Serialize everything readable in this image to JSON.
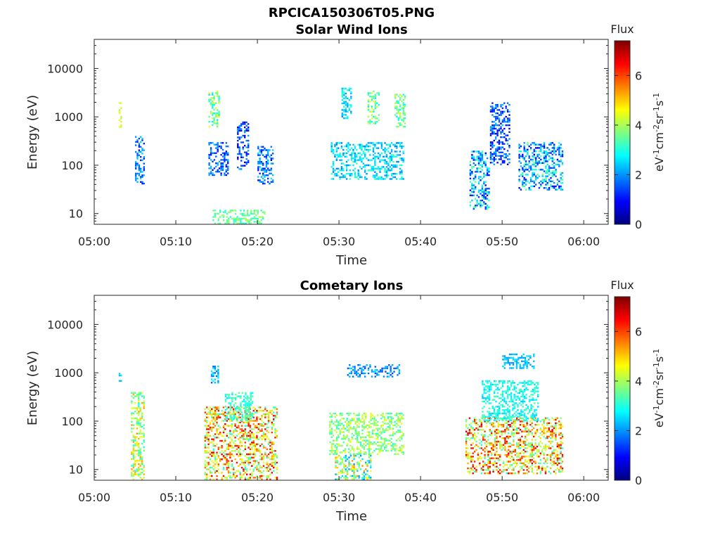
{
  "figure": {
    "title": "RPCICA150306T05.PNG"
  },
  "chart_data": [
    {
      "type": "heatmap",
      "title": "Solar Wind Ions",
      "xlabel": "Time",
      "ylabel": "Energy (eV)",
      "x_tick_labels": [
        "05:00",
        "05:10",
        "05:20",
        "05:30",
        "05:40",
        "05:50",
        "06:00"
      ],
      "x_ticks_min": [
        0,
        10,
        20,
        30,
        40,
        50,
        60
      ],
      "xlim_min": [
        0,
        63
      ],
      "y_scale": "log",
      "y_tick_labels": [
        "10",
        "100",
        "1000",
        "10000"
      ],
      "y_ticks": [
        10,
        100,
        1000,
        10000
      ],
      "ylim": [
        6,
        40000
      ],
      "colorbar": {
        "title": "Flux",
        "label": "eV-1cm-2sr-1s-1",
        "ticks": [
          0,
          2,
          4,
          6
        ],
        "range": [
          0,
          7.4
        ],
        "colormap": "jet"
      },
      "clusters": [
        {
          "t": [
            3.0,
            3.4
          ],
          "e": [
            550,
            2000
          ],
          "v": [
            3.8,
            4.8
          ]
        },
        {
          "t": [
            5.0,
            6.2
          ],
          "e": [
            40,
            400
          ],
          "v": [
            1.0,
            2.6
          ]
        },
        {
          "t": [
            14.0,
            15.4
          ],
          "e": [
            600,
            3500
          ],
          "v": [
            2.6,
            4.6
          ]
        },
        {
          "t": [
            14.0,
            16.5
          ],
          "e": [
            60,
            300
          ],
          "v": [
            0.8,
            2.4
          ]
        },
        {
          "t": [
            17.5,
            19.0
          ],
          "e": [
            80,
            800
          ],
          "v": [
            0.6,
            2.2
          ]
        },
        {
          "t": [
            20.0,
            22.0
          ],
          "e": [
            40,
            250
          ],
          "v": [
            1.0,
            2.6
          ]
        },
        {
          "t": [
            30.3,
            31.6
          ],
          "e": [
            900,
            4000
          ],
          "v": [
            2.0,
            3.2
          ]
        },
        {
          "t": [
            33.5,
            35.0
          ],
          "e": [
            700,
            3500
          ],
          "v": [
            2.6,
            4.6
          ]
        },
        {
          "t": [
            36.8,
            38.2
          ],
          "e": [
            600,
            3000
          ],
          "v": [
            2.6,
            4.4
          ]
        },
        {
          "t": [
            29.0,
            38.0
          ],
          "e": [
            50,
            300
          ],
          "v": [
            1.8,
            3.2
          ]
        },
        {
          "t": [
            46.0,
            48.5
          ],
          "e": [
            12,
            200
          ],
          "v": [
            0.8,
            3.6
          ]
        },
        {
          "t": [
            48.5,
            51.0
          ],
          "e": [
            100,
            2000
          ],
          "v": [
            0.6,
            2.4
          ]
        },
        {
          "t": [
            52.0,
            57.5
          ],
          "e": [
            30,
            300
          ],
          "v": [
            0.8,
            3.6
          ]
        },
        {
          "t": [
            14.5,
            21.0
          ],
          "e": [
            6,
            12
          ],
          "v": [
            3.0,
            4.0
          ]
        }
      ]
    },
    {
      "type": "heatmap",
      "title": "Cometary Ions",
      "xlabel": "Time",
      "ylabel": "Energy (eV)",
      "x_tick_labels": [
        "05:00",
        "05:10",
        "05:20",
        "05:30",
        "05:40",
        "05:50",
        "06:00"
      ],
      "x_ticks_min": [
        0,
        10,
        20,
        30,
        40,
        50,
        60
      ],
      "xlim_min": [
        0,
        63
      ],
      "y_scale": "log",
      "y_tick_labels": [
        "10",
        "100",
        "1000",
        "10000"
      ],
      "y_ticks": [
        10,
        100,
        1000,
        10000
      ],
      "ylim": [
        6,
        40000
      ],
      "colorbar": {
        "title": "Flux",
        "label": "eV-1cm-2sr-1s-1",
        "ticks": [
          0,
          2,
          4,
          6
        ],
        "range": [
          0,
          7.4
        ],
        "colormap": "jet"
      },
      "clusters": [
        {
          "t": [
            3.0,
            3.4
          ],
          "e": [
            600,
            1000
          ],
          "v": [
            2.0,
            2.6
          ]
        },
        {
          "t": [
            4.5,
            6.2
          ],
          "e": [
            6,
            400
          ],
          "v": [
            2.8,
            5.4
          ]
        },
        {
          "t": [
            13.5,
            22.5
          ],
          "e": [
            6,
            200
          ],
          "v": [
            3.0,
            6.8
          ]
        },
        {
          "t": [
            14.3,
            15.3
          ],
          "e": [
            600,
            1400
          ],
          "v": [
            1.6,
            2.8
          ]
        },
        {
          "t": [
            16.0,
            19.5
          ],
          "e": [
            100,
            400
          ],
          "v": [
            2.6,
            3.6
          ]
        },
        {
          "t": [
            28.8,
            38.0
          ],
          "e": [
            20,
            150
          ],
          "v": [
            3.0,
            4.6
          ]
        },
        {
          "t": [
            31.0,
            37.5
          ],
          "e": [
            800,
            1500
          ],
          "v": [
            1.4,
            2.6
          ]
        },
        {
          "t": [
            29.5,
            34.0
          ],
          "e": [
            6,
            20
          ],
          "v": [
            2.0,
            5.4
          ]
        },
        {
          "t": [
            45.5,
            57.5
          ],
          "e": [
            8,
            120
          ],
          "v": [
            3.0,
            6.8
          ]
        },
        {
          "t": [
            47.5,
            54.5
          ],
          "e": [
            100,
            700
          ],
          "v": [
            2.4,
            3.4
          ]
        },
        {
          "t": [
            50.0,
            54.0
          ],
          "e": [
            1200,
            2500
          ],
          "v": [
            2.0,
            2.6
          ]
        }
      ]
    }
  ]
}
